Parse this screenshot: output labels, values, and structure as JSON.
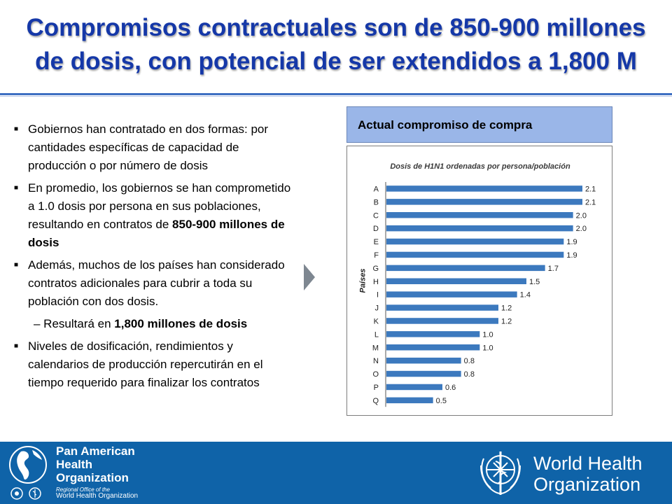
{
  "title": {
    "line1": "Compromisos contractuales son de 850-900 millones",
    "line2": "de dosis, con potencial de ser extendidos a 1,800 M"
  },
  "bullets": {
    "b1": "Gobiernos han contratado en dos formas: por cantidades específicas de capacidad de producción o por número de dosis",
    "b2_pre": "En promedio, los gobiernos se han comprometido a 1.0 dosis por persona en sus poblaciones, resultando en contratos de ",
    "b2_bold": "850-900 millones de dosis",
    "b3": "Además, muchos de los países han considerado contratos adicionales para cubrir a toda su población con dos dosis.",
    "sub_pre": "– Resultará en ",
    "sub_bold": "1,800 millones de dosis",
    "b4": "Niveles de dosificación, rendimientos y calendarios de producción repercutirán en el tiempo requerido para finalizar los contratos"
  },
  "panel": {
    "header": "Actual compromiso de compra"
  },
  "chart_data": {
    "type": "bar",
    "orientation": "horizontal",
    "title": "Dosis de H1N1 ordenadas por persona/población",
    "ylabel": "Países",
    "xlabel": "",
    "categories": [
      "A",
      "B",
      "C",
      "D",
      "E",
      "F",
      "G",
      "H",
      "I",
      "J",
      "K",
      "L",
      "M",
      "N",
      "O",
      "P",
      "Q"
    ],
    "values": [
      2.1,
      2.1,
      2.0,
      2.0,
      1.9,
      1.9,
      1.7,
      1.5,
      1.4,
      1.2,
      1.2,
      1.0,
      1.0,
      0.8,
      0.8,
      0.6,
      0.5
    ],
    "labels": [
      "2.1",
      "2.1",
      "2.0",
      "2.0",
      "1.9",
      "1.9",
      "1.7",
      "1.5",
      "1.4",
      "1.2",
      "1.2",
      "1.0",
      "1.0",
      "0.8",
      "0.8",
      "0.6",
      "0.5"
    ],
    "xlim": [
      0,
      2.1
    ],
    "bar_color": "#3c79be",
    "grid": false
  },
  "footer": {
    "paho_line1": "Pan American",
    "paho_line2": "Health",
    "paho_line3": "Organization",
    "paho_sub1": "Regional Office of the",
    "paho_sub2": "World Health Organization",
    "who_line1": "World Health",
    "who_line2": "Organization",
    "background": "#0f63a8"
  }
}
